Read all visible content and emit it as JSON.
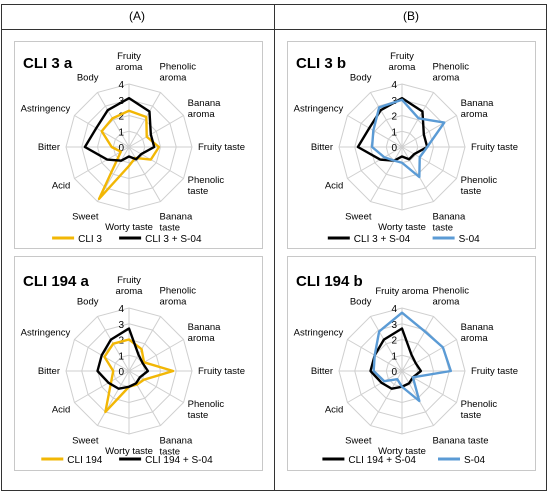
{
  "headers": {
    "left": "(A)",
    "right": "(B)"
  },
  "colors": {
    "yellow": "#f2b705",
    "black": "#000000",
    "blue": "#5b9bd5",
    "grid": "#cfcfcf"
  },
  "chart_data": [
    {
      "type": "radar",
      "title": "CLI 3 a",
      "axes": [
        "Fruity aroma",
        "Phenolic aroma",
        "Banana aroma",
        "Fruity taste",
        "Phenolic taste",
        "Banana taste",
        "Worty taste",
        "Sweet",
        "Acid",
        "Bitter",
        "Astringency",
        "Body"
      ],
      "tick_labels": [
        "0",
        "1",
        "2",
        "3",
        "4"
      ],
      "rlim": [
        0,
        4
      ],
      "series": [
        {
          "name": "CLI 3",
          "color": "#f2b705",
          "values": [
            2.3,
            2.2,
            1.3,
            1.9,
            1.6,
            0.8,
            1.2,
            3.8,
            0.6,
            1.1,
            2.0,
            2.1
          ]
        },
        {
          "name": "CLI 3 + S-04",
          "color": "#000000",
          "values": [
            3.1,
            2.6,
            1.6,
            1.6,
            0.9,
            0.9,
            0.6,
            1.0,
            1.6,
            2.8,
            2.4,
            2.7
          ]
        }
      ],
      "legend": "bottom"
    },
    {
      "type": "radar",
      "title": "CLI 3 b",
      "axes": [
        "Fruity aroma",
        "Phenolic aroma",
        "Banana aroma",
        "Fruity taste",
        "Phenolic taste",
        "Banana taste",
        "Worty taste",
        "Sweet",
        "Acid",
        "Bitter",
        "Astringency",
        "Body"
      ],
      "tick_labels": [
        "0",
        "1",
        "2",
        "3",
        "4"
      ],
      "rlim": [
        0,
        4
      ],
      "series": [
        {
          "name": "CLI 3 + S-04",
          "color": "#000000",
          "values": [
            3.1,
            2.6,
            1.6,
            1.6,
            0.9,
            0.9,
            0.6,
            1.0,
            1.6,
            2.8,
            2.4,
            2.7
          ]
        },
        {
          "name": "S-04",
          "color": "#5b9bd5",
          "values": [
            3.0,
            2.1,
            3.1,
            1.6,
            1.3,
            2.2,
            1.0,
            1.0,
            1.3,
            1.9,
            2.1,
            2.9
          ]
        }
      ],
      "legend": "bottom"
    },
    {
      "type": "radar",
      "title": "CLI 194 a",
      "axes": [
        "Fruity aroma",
        "Phenolic aroma",
        "Banana aroma",
        "Fruity taste",
        "Phenolic taste",
        "Banana taste",
        "Worty taste",
        "Sweet",
        "Acid",
        "Bitter",
        "Astringency",
        "Body"
      ],
      "tick_labels": [
        "0",
        "1",
        "2",
        "3",
        "4"
      ],
      "rlim": [
        0,
        4
      ],
      "series": [
        {
          "name": "CLI 194",
          "color": "#f2b705",
          "values": [
            2.0,
            1.6,
            1.1,
            2.8,
            1.1,
            1.0,
            1.0,
            3.0,
            1.3,
            1.0,
            1.8,
            2.0
          ]
        },
        {
          "name": "CLI 194 + S-04",
          "color": "#000000",
          "values": [
            2.7,
            1.2,
            1.0,
            1.2,
            0.8,
            0.9,
            1.0,
            1.3,
            1.5,
            2.0,
            2.0,
            2.3
          ]
        }
      ],
      "legend": "bottom"
    },
    {
      "type": "radar",
      "title": "CLI 194 b",
      "axes": [
        "Fruity aroma",
        "Phenolic aroma",
        "Banana aroma",
        "Fruity taste",
        "Phenolic taste",
        "Banana taste",
        "Worty taste",
        "Sweet",
        "Acid",
        "Bitter",
        "Astringency",
        "Body"
      ],
      "tick_labels": [
        "0",
        "1",
        "2",
        "3",
        "4"
      ],
      "rlim": [
        0,
        4
      ],
      "series": [
        {
          "name": "CLI 194 + S-04",
          "color": "#000000",
          "values": [
            2.7,
            1.2,
            1.0,
            1.2,
            0.8,
            0.9,
            1.0,
            1.3,
            1.5,
            2.0,
            2.0,
            2.3
          ]
        },
        {
          "name": "S-04",
          "color": "#5b9bd5",
          "values": [
            3.7,
            2.9,
            3.0,
            3.1,
            0.8,
            2.2,
            1.0,
            0.6,
            1.3,
            1.8,
            2.0,
            2.9
          ]
        }
      ],
      "legend": "bottom"
    }
  ]
}
